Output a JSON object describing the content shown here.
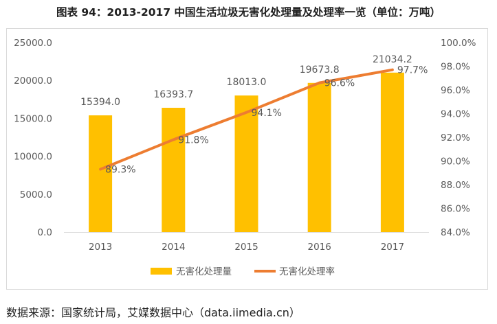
{
  "title": "图表 94：2013-2017 中国生活垃圾无害化处理量及处理率一览（单位：万吨）",
  "source": "数据来源：国家统计局，艾媒数据中心（data.iimedia.cn）",
  "chart_data": {
    "type": "bar",
    "categories": [
      "2013",
      "2014",
      "2015",
      "2016",
      "2017"
    ],
    "series": [
      {
        "name": "无害化处理量",
        "kind": "bar",
        "axis": "left",
        "color": "#ffc000",
        "values": [
          15394.0,
          16393.7,
          18013.0,
          19673.8,
          21034.2
        ],
        "labels": [
          "15394.0",
          "16393.7",
          "18013.0",
          "19673.8",
          "21034.2"
        ]
      },
      {
        "name": "无害化处理率",
        "kind": "line",
        "axis": "right",
        "color": "#ed7d31",
        "values": [
          89.3,
          91.8,
          94.1,
          96.6,
          97.7
        ],
        "labels": [
          "89.3%",
          "91.8%",
          "94.1%",
          "96.6%",
          "97.7%"
        ]
      }
    ],
    "y_left": {
      "range": [
        0,
        25000
      ],
      "ticks": [
        "0.0",
        "5000.0",
        "10000.0",
        "15000.0",
        "20000.0",
        "25000.0"
      ]
    },
    "y_right": {
      "range": [
        84,
        100
      ],
      "ticks": [
        "84.0%",
        "86.0%",
        "88.0%",
        "90.0%",
        "92.0%",
        "94.0%",
        "96.0%",
        "98.0%",
        "100.0%"
      ]
    },
    "legend": {
      "position": "bottom"
    },
    "grid": false
  }
}
